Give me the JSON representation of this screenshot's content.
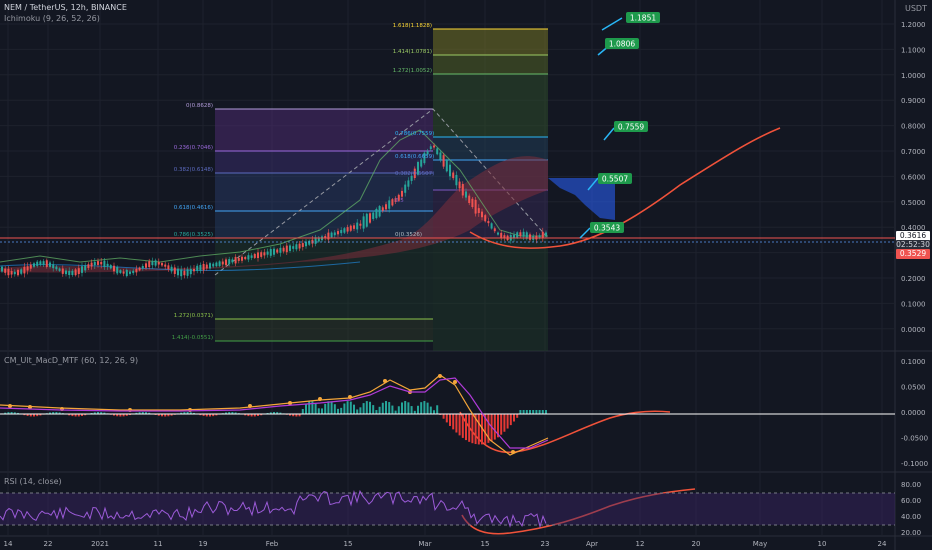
{
  "header": {
    "symbol": "NEM / TetherUS, 12h, BINANCE",
    "indicator": "Ichimoku (9, 26, 52, 26)",
    "currency": "USDT"
  },
  "price_scale": {
    "ticks": [
      "1.2000",
      "1.1000",
      "1.0000",
      "0.9000",
      "0.8000",
      "0.7000",
      "0.6000",
      "0.5000",
      "0.4000",
      "0.3000",
      "0.2000",
      "0.1000",
      "0.0000"
    ]
  },
  "price_labels": {
    "current": "0.3616",
    "countdown": "02:52:30",
    "red": "0.3529"
  },
  "fib_left": [
    "0(0.8628)",
    "0.236(0.7046)",
    "0.382(0.6148)",
    "0.618(0.4616)",
    "0.786(0.3525)",
    "1.272(0.0371)",
    "1.414(-0.0551)"
  ],
  "fib_right": [
    "1.618(1.1828)",
    "1.414(1.0781)",
    "1.272(1.0052)",
    "0.786(0.7559)",
    "0.618(0.6659)",
    "0.5",
    "0.382(0.5507)",
    "0(0.3526)"
  ],
  "targets": [
    "1.1851",
    "1.0806",
    "0.7559",
    "0.5507",
    "0.3543"
  ],
  "macd": {
    "title": "CM_Ult_MacD_MTF (60, 12, 26, 9)",
    "ticks": [
      "0.1000",
      "0.0500",
      "0.0000",
      "-0.0500",
      "-0.1000"
    ]
  },
  "rsi": {
    "title": "RSI (14, close)",
    "ticks": [
      "80.00",
      "60.00",
      "40.00",
      "20.00"
    ]
  },
  "time_axis": [
    "14",
    "22",
    "2021",
    "11",
    "19",
    "Feb",
    "15",
    "Mar",
    "15",
    "23",
    "Apr",
    "12",
    "20",
    "May",
    "10",
    "24"
  ],
  "colors": {
    "background": "#131722",
    "up": "#26a69a",
    "down": "#ef5350",
    "projection": "#f0523a",
    "target_label": "#1e9a4c",
    "current_price": "#2962ff"
  }
}
